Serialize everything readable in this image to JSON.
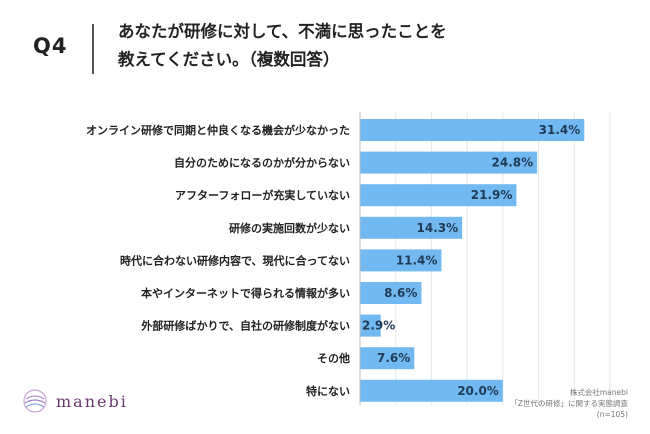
{
  "header": {
    "q_label": "Q4",
    "question_line1": "あなたが研修に対して、不満に思ったことを",
    "question_line2": "教えてください。（複数回答）"
  },
  "footer": {
    "logo_text": "manebi",
    "source_line1": "株式会社manebi",
    "source_line2": "「Z世代の研修」に関する実態調査",
    "source_line3": "(n=105)"
  },
  "colors": {
    "bar": "#72b9f1",
    "value_text": "#1f3b57"
  },
  "chart_data": {
    "type": "bar",
    "orientation": "horizontal",
    "categories": [
      "オンライン研修で同期と仲良くなる機会が少なかった",
      "自分のためになるのかが分からない",
      "アフターフォローが充実していない",
      "研修の実施回数が少ない",
      "時代に合わない研修内容で、現代に合ってない",
      "本やインターネットで得られる情報が多い",
      "外部研修ばかりで、自社の研修制度がない",
      "その他",
      "特にない"
    ],
    "values": [
      31.4,
      24.8,
      21.9,
      14.3,
      11.4,
      8.6,
      2.9,
      7.6,
      20.0
    ],
    "value_labels": [
      "31.4%",
      "24.8%",
      "21.9%",
      "14.3%",
      "11.4%",
      "8.6%",
      "2.9%",
      "7.6%",
      "20.0%"
    ],
    "unit": "%",
    "xlim": [
      0,
      35
    ],
    "grid": true
  }
}
